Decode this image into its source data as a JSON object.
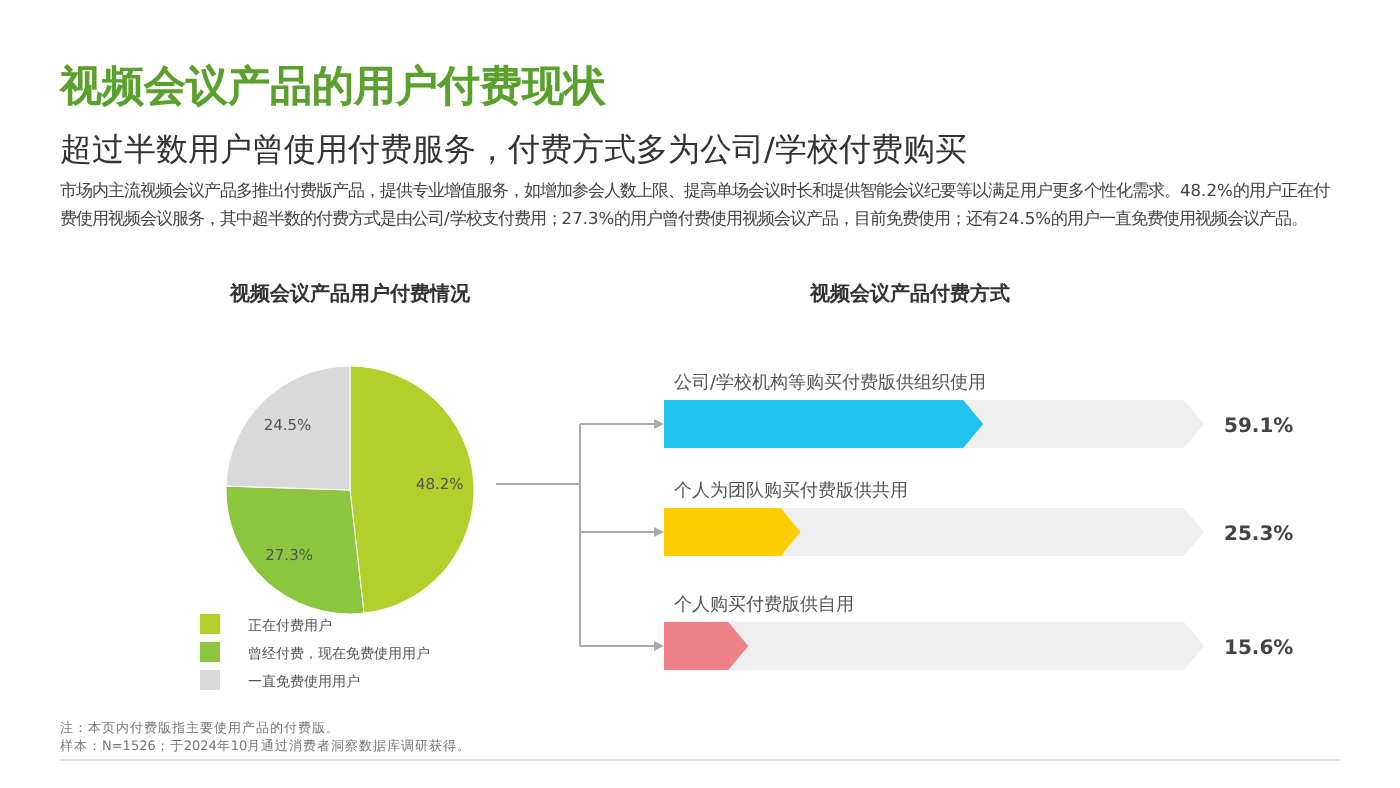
{
  "chart_data": [
    {
      "type": "other",
      "title": "视频会议产品的用户付费现状",
      "subtitle": "超过半数用户曾使用付费服务，付费方式多为公司/学校付费购买",
      "annotations": [
        "市场内主流视频会议产品多推出付费版产品，提供专业增值服务，如增加参会人数上限、提高单场会议时长和提供智能会议纪要等以满足用户更多个性化需求。48.2%的用户正在付费使用视频会议服务，其中超半数的付费方式是由公司/学校支付费用；27.3%的用户曾付费使用视频会议产品，目前免费使用；还有24.5%的用户一直免费使用视频会议产品。",
        "注：本页内付费版指主要使用产品的付费版。",
        "样本：N=1526；于2024年10月通过消费者洞察数据库调研获得。"
      ]
    },
    {
      "type": "pie",
      "title": "视频会议产品用户付费情况",
      "categories": [
        "正在付费用户",
        "曾经付费，现在免费使用用户",
        "一直免费使用用户"
      ],
      "values": [
        48.2,
        27.3,
        24.5
      ],
      "colors": [
        "#b2cf2c",
        "#8cc63f",
        "#d9d9d9"
      ],
      "value_labels": [
        "48.2%",
        "27.3%",
        "24.5%"
      ],
      "legend": "bottom left"
    },
    {
      "type": "bar",
      "orientation": "horizontal",
      "title": "视频会议产品付费方式",
      "categories": [
        "公司/学校机构等购买付费版供组织使用",
        "个人为团队购买付费版供共用",
        "个人购买付费版供自用"
      ],
      "values": [
        59.1,
        25.3,
        15.6
      ],
      "colors": [
        "#1fc3ee",
        "#ffcc00",
        "#ef8088"
      ],
      "value_labels": [
        "59.1%",
        "25.3%",
        "15.6%"
      ],
      "xlim": [
        0,
        100
      ]
    }
  ]
}
